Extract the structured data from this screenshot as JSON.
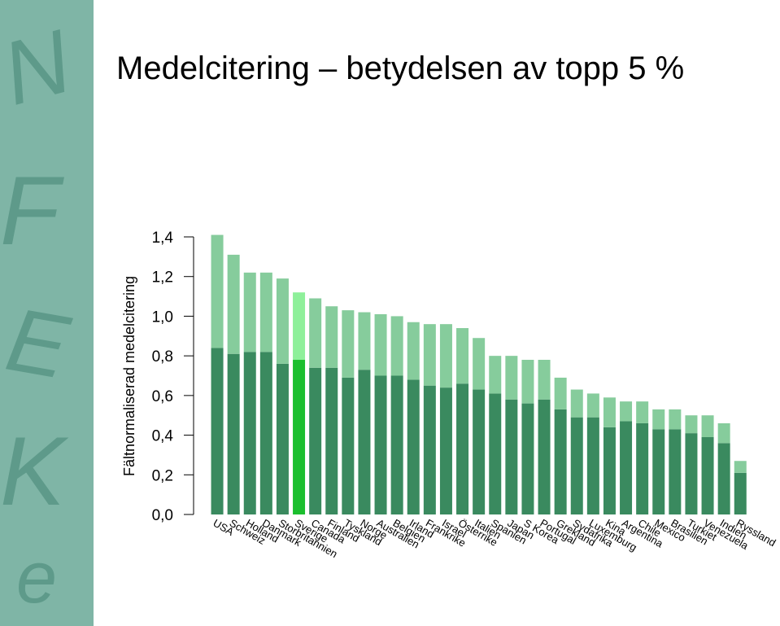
{
  "chart_data": {
    "type": "stacked-bar",
    "title": "Medelcitering – betydelsen av topp 5 %",
    "y_label": "Fältnormaliserad medelcitering",
    "categories": [
      "USA",
      "Schweiz",
      "Holland",
      "Danmark",
      "Storbritannien",
      "Sverige",
      "Canada",
      "Finland",
      "Tyskland",
      "Norge",
      "Australien",
      "Belgien",
      "Irland",
      "Frankrike",
      "Israel",
      "Österrike",
      "Italien",
      "Spanien",
      "Japan",
      "S Korea",
      "Portugal",
      "Grekland",
      "Sydafrika",
      "Luxemburg",
      "Kina",
      "Argentina",
      "Chile",
      "Mexico",
      "Brasilien",
      "Turkiet",
      "Venezuela",
      "Indien",
      "Ryssland"
    ],
    "series": [
      {
        "color": "#3a8a5f",
        "highlight_color": "#1bbf2e",
        "values": [
          0.84,
          0.81,
          0.82,
          0.82,
          0.76,
          0.78,
          0.74,
          0.74,
          0.69,
          0.73,
          0.7,
          0.7,
          0.68,
          0.65,
          0.64,
          0.66,
          0.63,
          0.61,
          0.58,
          0.56,
          0.58,
          0.53,
          0.49,
          0.49,
          0.44,
          0.47,
          0.46,
          0.43,
          0.43,
          0.41,
          0.39,
          0.36,
          0.21
        ]
      },
      {
        "color": "#86cc9c",
        "highlight_color": "#8ef09a",
        "values": [
          0.57,
          0.5,
          0.4,
          0.4,
          0.43,
          0.34,
          0.35,
          0.31,
          0.34,
          0.29,
          0.31,
          0.3,
          0.29,
          0.31,
          0.32,
          0.28,
          0.26,
          0.19,
          0.22,
          0.22,
          0.2,
          0.16,
          0.14,
          0.12,
          0.15,
          0.1,
          0.11,
          0.1,
          0.1,
          0.09,
          0.11,
          0.1,
          0.06
        ]
      }
    ],
    "highlight_index": 5,
    "ylim": [
      0,
      1.4
    ],
    "yticks": [
      {
        "value": 0,
        "label": "0,0"
      },
      {
        "value": 0.2,
        "label": "0,2"
      },
      {
        "value": 0.4,
        "label": "0,4"
      },
      {
        "value": 0.6,
        "label": "0,6"
      },
      {
        "value": 0.8,
        "label": "0,8"
      },
      {
        "value": 1.0,
        "label": "1,0"
      },
      {
        "value": 1.2,
        "label": "1,2"
      },
      {
        "value": 1.4,
        "label": "1,4"
      }
    ]
  }
}
